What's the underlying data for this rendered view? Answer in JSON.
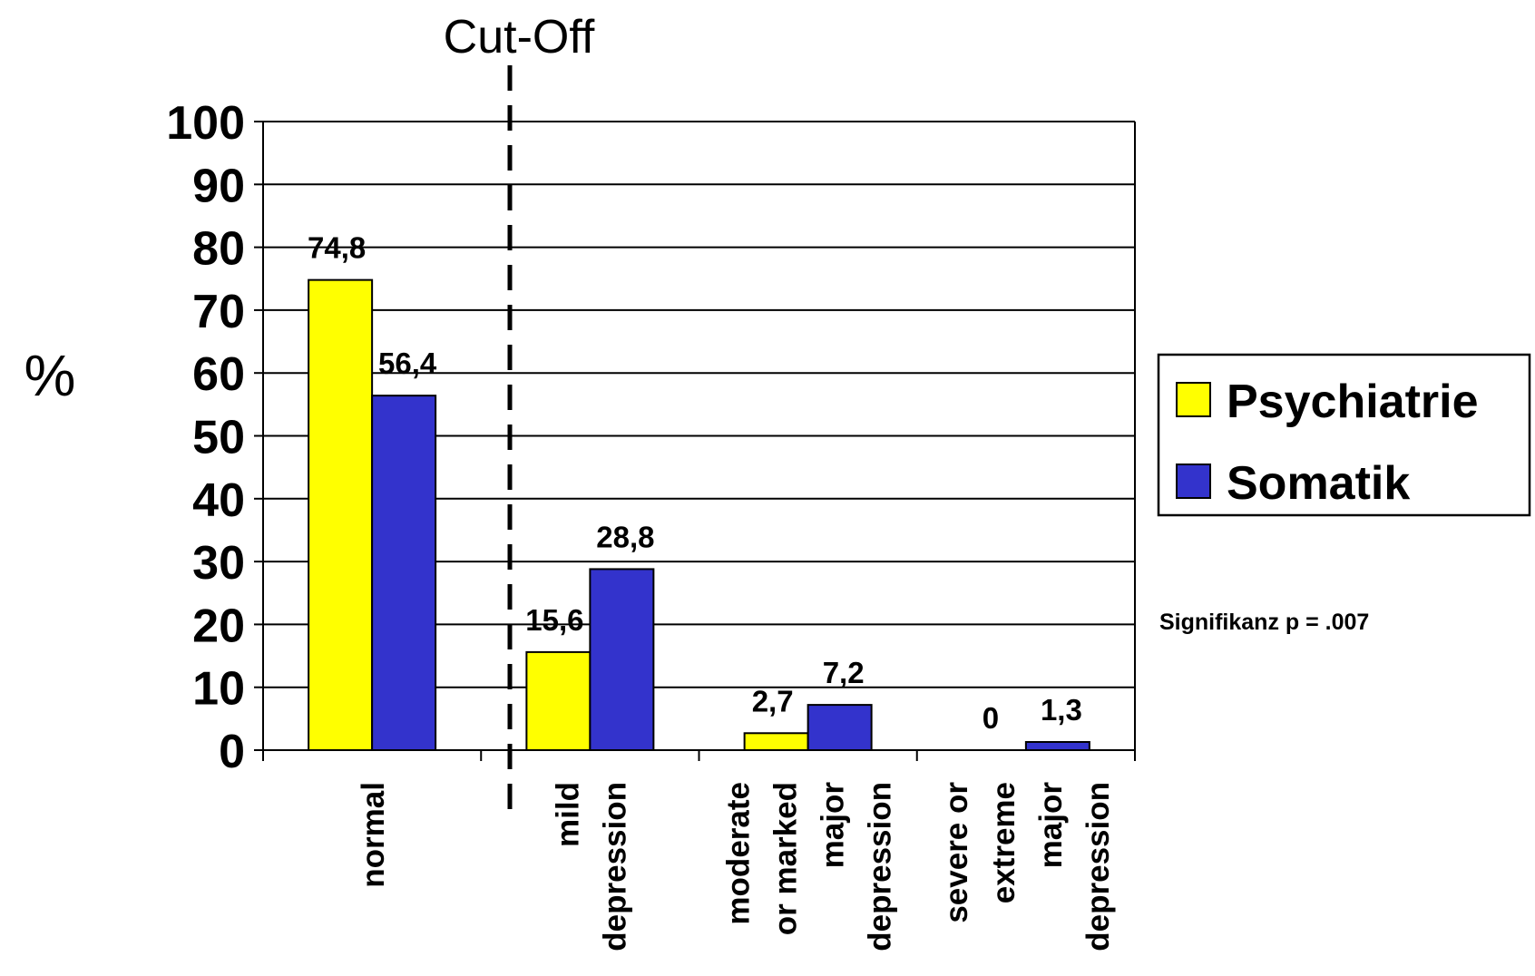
{
  "chart_data": {
    "type": "bar",
    "ylabel": "%",
    "ylim": [
      0,
      100
    ],
    "yticks": [
      0,
      10,
      20,
      30,
      40,
      50,
      60,
      70,
      80,
      90,
      100
    ],
    "grid": true,
    "legend_position": "right",
    "categories": [
      [
        "normal"
      ],
      [
        "mild",
        "depression"
      ],
      [
        "moderate",
        "or marked",
        "major",
        "depression"
      ],
      [
        "severe or",
        "extreme",
        "major",
        "depression"
      ]
    ],
    "series": [
      {
        "name": "Psychiatrie",
        "color": "#ffff00",
        "values": [
          74.8,
          15.6,
          2.7,
          0
        ],
        "labels": [
          "74,8",
          "15,6",
          "2,7",
          "0"
        ]
      },
      {
        "name": "Somatik",
        "color": "#3333cc",
        "values": [
          56.4,
          28.8,
          7.2,
          1.3
        ],
        "labels": [
          "56,4",
          "28,8",
          "7,2",
          "1,3"
        ]
      }
    ],
    "annotations": {
      "cutoff_label": "Cut-Off",
      "significance": "Signifikanz p = .007"
    }
  }
}
